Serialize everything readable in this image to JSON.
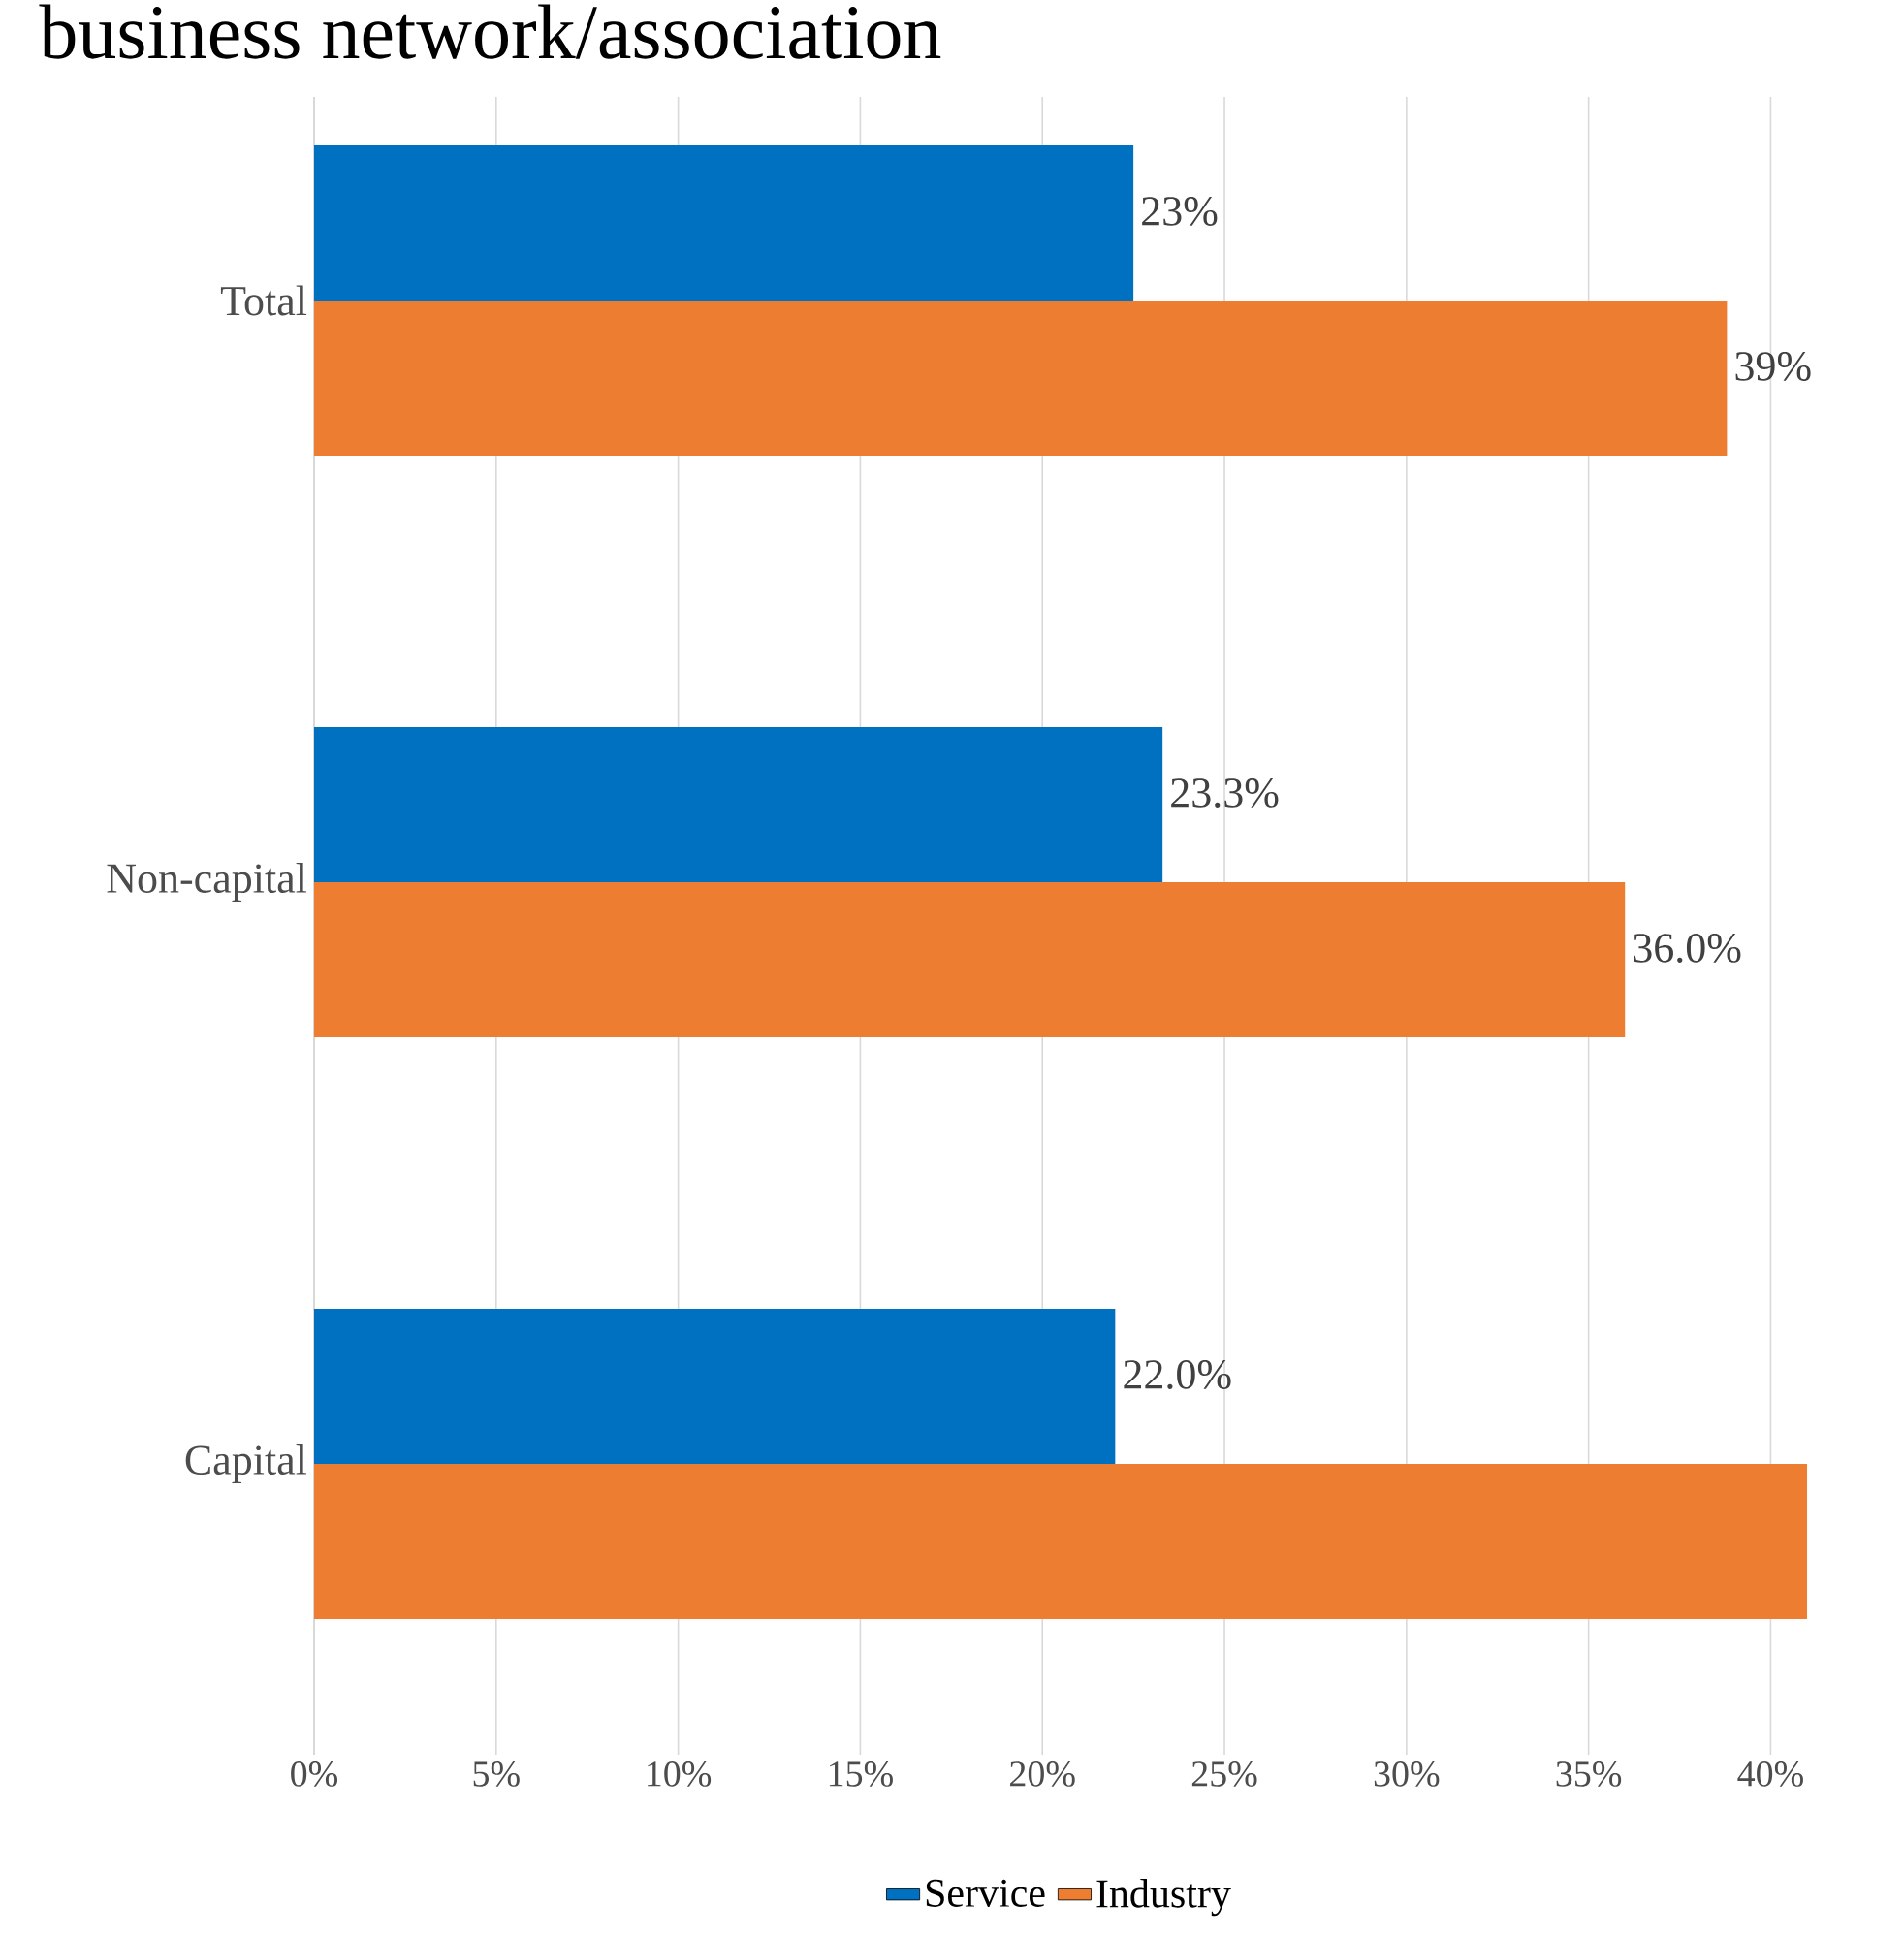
{
  "chart_data": {
    "type": "bar",
    "orientation": "horizontal",
    "title": "business network/association",
    "categories": [
      "Total",
      "Non-capital",
      "Capital"
    ],
    "series": [
      {
        "name": "Service",
        "color": "#0070c0",
        "values": [
          22.5,
          23.3,
          22.0
        ],
        "value_labels": [
          "23%",
          "23.3%",
          "22.0%"
        ]
      },
      {
        "name": "Industry",
        "color": "#ed7d31",
        "values": [
          38.8,
          36.0,
          41
        ],
        "value_labels": [
          "39%",
          "36.0%",
          null
        ]
      }
    ],
    "xlim": [
      0,
      41
    ],
    "xticks": [
      {
        "value": 0,
        "label": "0%"
      },
      {
        "value": 5,
        "label": "5%"
      },
      {
        "value": 10,
        "label": "10%"
      },
      {
        "value": 15,
        "label": "15%"
      },
      {
        "value": 20,
        "label": "20%"
      },
      {
        "value": 25,
        "label": "25%"
      },
      {
        "value": 30,
        "label": "30%"
      },
      {
        "value": 35,
        "label": "35%"
      },
      {
        "value": 40,
        "label": "40%"
      }
    ],
    "grid": "x",
    "legend": "bottom"
  }
}
